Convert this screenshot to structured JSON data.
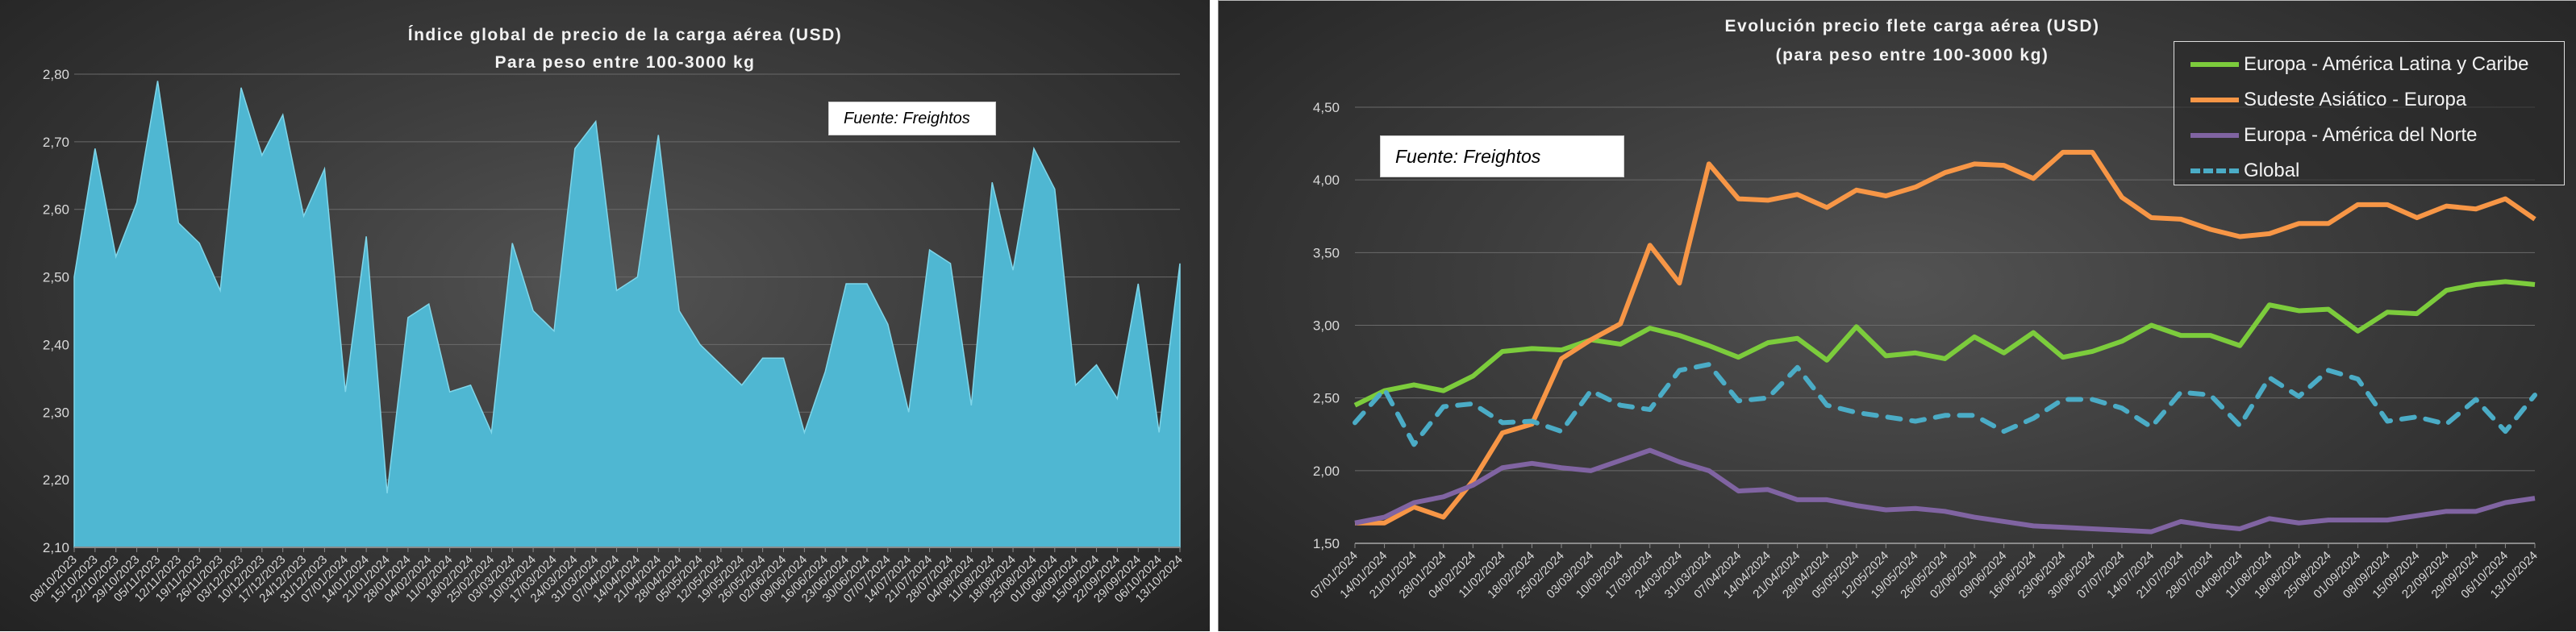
{
  "chart_data": [
    {
      "type": "area",
      "title": "Índice global de precio de la carga aérea (USD)",
      "subtitle": "Para peso entre 100-3000 kg",
      "note": "Fuente: Freightos",
      "xlabel": "",
      "ylabel": "",
      "ylim": [
        2.1,
        2.8
      ],
      "yticks": [
        "2,10",
        "2,20",
        "2,30",
        "2,40",
        "2,50",
        "2,60",
        "2,70",
        "2,80"
      ],
      "grid": true,
      "color": "#4fb7d2",
      "categories": [
        "08/10/2023",
        "15/10/2023",
        "22/10/2023",
        "29/10/2023",
        "05/11/2023",
        "12/11/2023",
        "19/11/2023",
        "26/11/2023",
        "03/12/2023",
        "10/12/2023",
        "17/12/2023",
        "24/12/2023",
        "31/12/2023",
        "07/01/2024",
        "14/01/2024",
        "21/01/2024",
        "28/01/2024",
        "04/02/2024",
        "11/02/2024",
        "18/02/2024",
        "25/02/2024",
        "03/03/2024",
        "10/03/2024",
        "17/03/2024",
        "24/03/2024",
        "31/03/2024",
        "07/04/2024",
        "14/04/2024",
        "21/04/2024",
        "28/04/2024",
        "05/05/2024",
        "12/05/2024",
        "19/05/2024",
        "26/05/2024",
        "02/06/2024",
        "09/06/2024",
        "16/06/2024",
        "23/06/2024",
        "30/06/2024",
        "07/07/2024",
        "14/07/2024",
        "21/07/2024",
        "28/07/2024",
        "04/08/2024",
        "11/08/2024",
        "18/08/2024",
        "25/08/2024",
        "01/09/2024",
        "08/09/2024",
        "15/09/2024",
        "22/09/2024",
        "29/09/2024",
        "06/10/2024",
        "13/10/2024"
      ],
      "values": [
        2.5,
        2.69,
        2.53,
        2.61,
        2.79,
        2.58,
        2.55,
        2.48,
        2.78,
        2.68,
        2.74,
        2.59,
        2.66,
        2.33,
        2.56,
        2.18,
        2.44,
        2.46,
        2.33,
        2.34,
        2.27,
        2.55,
        2.45,
        2.42,
        2.69,
        2.73,
        2.48,
        2.5,
        2.71,
        2.45,
        2.4,
        2.37,
        2.34,
        2.38,
        2.38,
        2.27,
        2.36,
        2.49,
        2.49,
        2.43,
        2.3,
        2.54,
        2.52,
        2.31,
        2.64,
        2.51,
        2.69,
        2.63,
        2.34,
        2.37,
        2.32,
        2.49,
        2.27,
        2.52
      ]
    },
    {
      "type": "line",
      "title": "Evolución precio flete carga  aérea (USD)",
      "subtitle": "(para peso entre 100-3000  kg)",
      "note": "Fuente: Freightos",
      "xlabel": "",
      "ylabel": "",
      "ylim": [
        1.5,
        4.5
      ],
      "yticks": [
        "1,50",
        "2,00",
        "2,50",
        "3,00",
        "3,50",
        "4,00",
        "4,50"
      ],
      "grid": true,
      "legend_position": "top-right",
      "categories": [
        "07/01/2024",
        "14/01/2024",
        "21/01/2024",
        "28/01/2024",
        "04/02/2024",
        "11/02/2024",
        "18/02/2024",
        "25/02/2024",
        "03/03/2024",
        "10/03/2024",
        "17/03/2024",
        "24/03/2024",
        "31/03/2024",
        "07/04/2024",
        "14/04/2024",
        "21/04/2024",
        "28/04/2024",
        "05/05/2024",
        "12/05/2024",
        "19/05/2024",
        "26/05/2024",
        "02/06/2024",
        "09/06/2024",
        "16/06/2024",
        "23/06/2024",
        "30/06/2024",
        "07/07/2024",
        "14/07/2024",
        "21/07/2024",
        "28/07/2024",
        "04/08/2024",
        "11/08/2024",
        "18/08/2024",
        "25/08/2024",
        "01/09/2024",
        "08/09/2024",
        "15/09/2024",
        "22/09/2024",
        "29/09/2024",
        "06/10/2024",
        "13/10/2024"
      ],
      "series": [
        {
          "name": "Europa - América Latina y Caribe",
          "color": "#7ccc3c",
          "dashed": false,
          "values": [
            2.45,
            2.55,
            2.59,
            2.55,
            2.65,
            2.82,
            2.84,
            2.83,
            2.9,
            2.87,
            2.98,
            2.93,
            2.86,
            2.78,
            2.88,
            2.91,
            2.76,
            2.99,
            2.79,
            2.81,
            2.77,
            2.92,
            2.81,
            2.95,
            2.78,
            2.82,
            2.89,
            3.0,
            2.93,
            2.93,
            2.86,
            3.14,
            3.1,
            3.11,
            2.96,
            3.09,
            3.08,
            3.24,
            3.28,
            3.3,
            3.28
          ]
        },
        {
          "name": "Sudeste Asiático - Europa",
          "color": "#f79646",
          "dashed": false,
          "values": [
            1.64,
            1.64,
            1.75,
            1.68,
            1.93,
            2.26,
            2.32,
            2.77,
            2.9,
            3.01,
            3.55,
            3.29,
            4.11,
            3.87,
            3.86,
            3.9,
            3.81,
            3.93,
            3.89,
            3.95,
            4.05,
            4.11,
            4.1,
            4.01,
            4.19,
            4.19,
            3.88,
            3.74,
            3.73,
            3.66,
            3.61,
            3.63,
            3.7,
            3.7,
            3.83,
            3.83,
            3.74,
            3.82,
            3.8,
            3.87,
            3.73
          ]
        },
        {
          "name": "Europa - América del Norte",
          "color": "#8064a2",
          "dashed": false,
          "values": [
            1.64,
            1.68,
            1.78,
            1.82,
            1.9,
            2.02,
            2.05,
            2.02,
            2.0,
            2.07,
            2.14,
            2.06,
            2.0,
            1.86,
            1.87,
            1.8,
            1.8,
            1.76,
            1.73,
            1.74,
            1.72,
            1.68,
            1.65,
            1.62,
            1.61,
            1.6,
            1.59,
            1.58,
            1.65,
            1.62,
            1.6,
            1.67,
            1.64,
            1.66,
            1.66,
            1.66,
            1.69,
            1.72,
            1.72,
            1.78,
            1.81
          ]
        },
        {
          "name": "Global",
          "color": "#4bacc6",
          "dashed": true,
          "values": [
            2.33,
            2.56,
            2.18,
            2.44,
            2.46,
            2.33,
            2.34,
            2.27,
            2.55,
            2.45,
            2.42,
            2.69,
            2.73,
            2.48,
            2.5,
            2.71,
            2.45,
            2.4,
            2.37,
            2.34,
            2.38,
            2.38,
            2.27,
            2.36,
            2.49,
            2.49,
            2.43,
            2.3,
            2.54,
            2.52,
            2.31,
            2.64,
            2.51,
            2.69,
            2.63,
            2.34,
            2.37,
            2.32,
            2.49,
            2.27,
            2.52
          ]
        }
      ]
    }
  ]
}
